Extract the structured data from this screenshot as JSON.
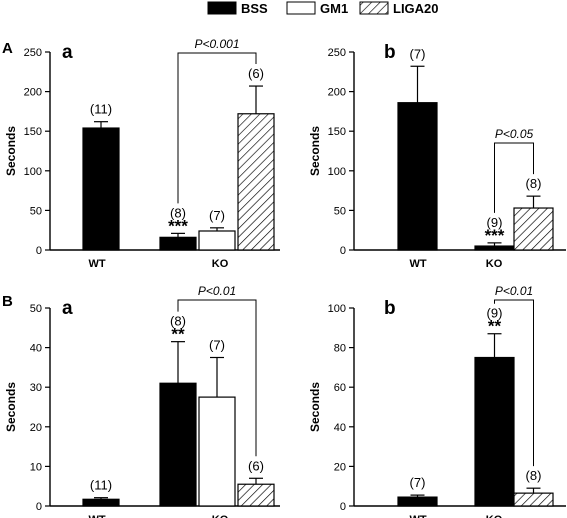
{
  "legend": [
    {
      "label": "BSS",
      "pattern": "black"
    },
    {
      "label": "GM1",
      "pattern": "white"
    },
    {
      "label": "LIGA20",
      "pattern": "hatch"
    }
  ],
  "rows": [
    {
      "label": "A"
    },
    {
      "label": "B"
    }
  ],
  "chart_data": [
    {
      "id": "Aa",
      "type": "bar",
      "row": "A",
      "sublabel": "a",
      "ylabel": "Seconds",
      "ylim": [
        0,
        250
      ],
      "yticks": [
        0,
        50,
        100,
        150,
        200,
        250
      ],
      "groups": [
        "WT",
        "KO"
      ],
      "bars": [
        {
          "group": "WT",
          "series": "BSS",
          "value": 154,
          "error": 8,
          "n": "(11)",
          "stars": ""
        },
        {
          "group": "KO",
          "series": "BSS",
          "value": 16,
          "error": 5,
          "n": "(8)",
          "stars": "***"
        },
        {
          "group": "KO",
          "series": "GM1",
          "value": 24,
          "error": 4,
          "n": "(7)",
          "stars": ""
        },
        {
          "group": "KO",
          "series": "LIGA20",
          "value": 172,
          "error": 35,
          "n": "(6)",
          "stars": ""
        }
      ],
      "comparison": {
        "from": 1,
        "to": 3,
        "label": "P<0.001"
      }
    },
    {
      "id": "Ab",
      "type": "bar",
      "row": "A",
      "sublabel": "b",
      "ylabel": "Seconds",
      "ylim": [
        0,
        250
      ],
      "yticks": [
        0,
        50,
        100,
        150,
        200,
        250
      ],
      "groups": [
        "WT",
        "KO"
      ],
      "bars": [
        {
          "group": "WT",
          "series": "BSS",
          "value": 186,
          "error": 46,
          "n": "(7)",
          "stars": ""
        },
        {
          "group": "KO",
          "series": "BSS",
          "value": 5,
          "error": 4,
          "n": "(9)",
          "stars": "***"
        },
        {
          "group": "KO",
          "series": "LIGA20",
          "value": 53,
          "error": 15,
          "n": "(8)",
          "stars": ""
        }
      ],
      "comparison": {
        "from": 1,
        "to": 2,
        "label": "P<0.05"
      }
    },
    {
      "id": "Ba",
      "type": "bar",
      "row": "B",
      "sublabel": "a",
      "ylabel": "Seconds",
      "ylim": [
        0,
        50
      ],
      "yticks": [
        0,
        10,
        20,
        30,
        40,
        50
      ],
      "groups": [
        "WT",
        "KO"
      ],
      "bars": [
        {
          "group": "WT",
          "series": "BSS",
          "value": 1.7,
          "error": 0.4,
          "n": "(11)",
          "stars": ""
        },
        {
          "group": "KO",
          "series": "BSS",
          "value": 31,
          "error": 10.5,
          "n": "(8)",
          "stars": "**"
        },
        {
          "group": "KO",
          "series": "GM1",
          "value": 27.5,
          "error": 10,
          "n": "(7)",
          "stars": ""
        },
        {
          "group": "KO",
          "series": "LIGA20",
          "value": 5.5,
          "error": 1.5,
          "n": "(6)",
          "stars": ""
        }
      ],
      "comparison": {
        "from": 1,
        "to": 3,
        "label": "P<0.01"
      }
    },
    {
      "id": "Bb",
      "type": "bar",
      "row": "B",
      "sublabel": "b",
      "ylabel": "Seconds",
      "ylim": [
        0,
        100
      ],
      "yticks": [
        0,
        20,
        40,
        60,
        80,
        100
      ],
      "groups": [
        "WT",
        "KO"
      ],
      "bars": [
        {
          "group": "WT",
          "series": "BSS",
          "value": 4.5,
          "error": 1,
          "n": "(7)",
          "stars": ""
        },
        {
          "group": "KO",
          "series": "BSS",
          "value": 75,
          "error": 12,
          "n": "(9)",
          "stars": "**"
        },
        {
          "group": "KO",
          "series": "LIGA20",
          "value": 6.5,
          "error": 2.5,
          "n": "(8)",
          "stars": ""
        }
      ],
      "comparison": {
        "from": 1,
        "to": 2,
        "label": "P<0.01"
      }
    }
  ]
}
